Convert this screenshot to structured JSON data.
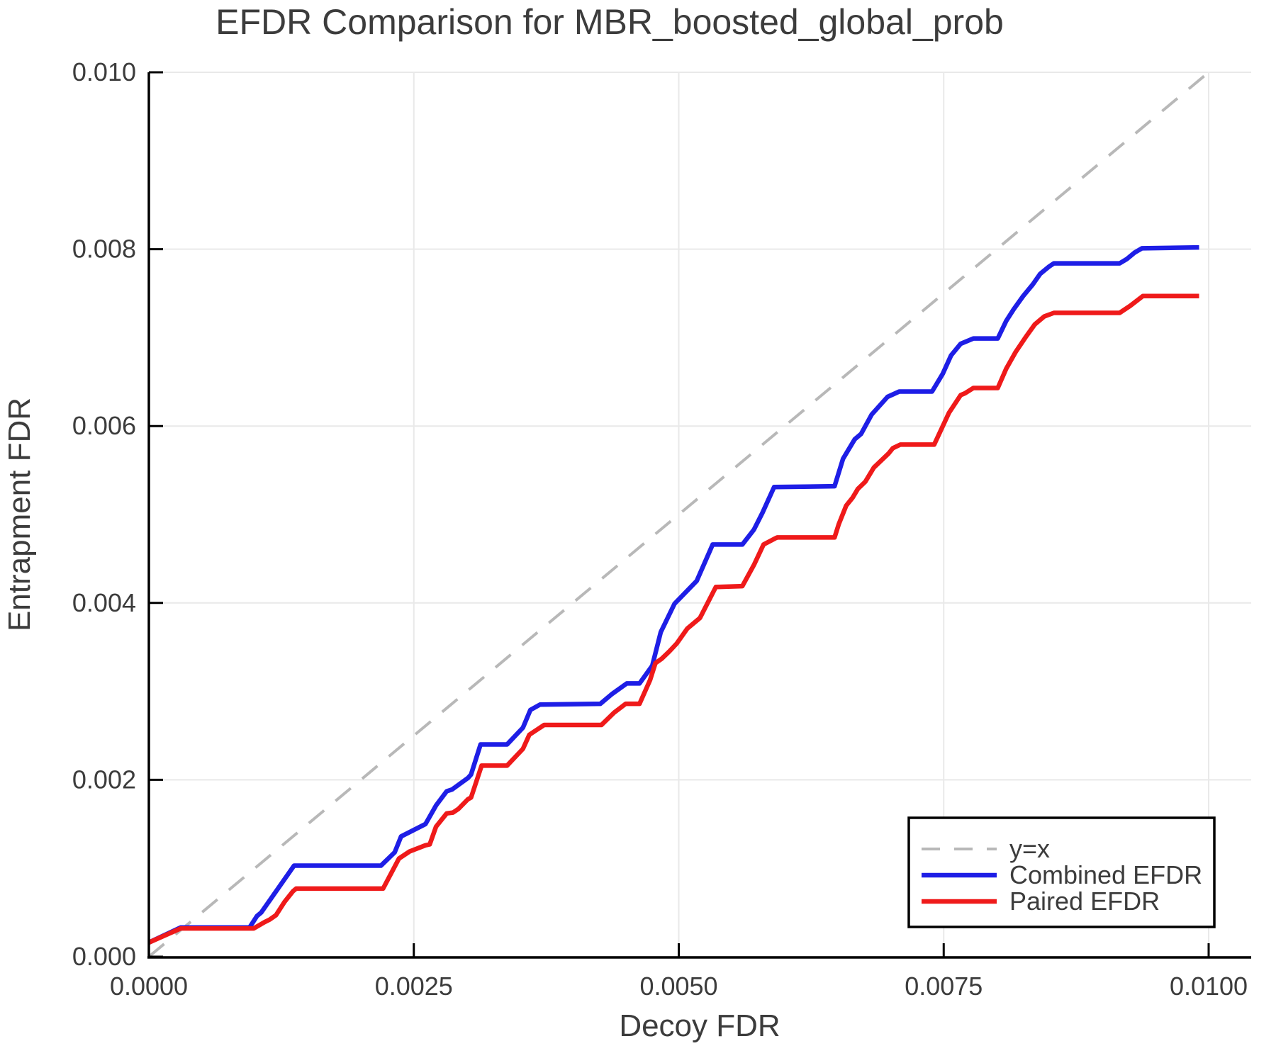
{
  "title": "EFDR Comparison for MBR_boosted_global_prob",
  "colors": {
    "combined": "#1e1ee6",
    "paired": "#ef1a1a",
    "identity": "#b8b8b8",
    "grid": "#e9e9e9",
    "spine": "#000000",
    "text": "#3c3c3c",
    "legend_border": "#000000",
    "legend_fill": "#ffffff"
  },
  "legend": {
    "entries": [
      {
        "label": "y=x",
        "style": "dashed",
        "color": "#b8b8b8"
      },
      {
        "label": "Combined EFDR",
        "style": "solid",
        "color": "#1e1ee6"
      },
      {
        "label": "Paired EFDR",
        "style": "solid",
        "color": "#ef1a1a"
      }
    ],
    "position": "bottom-right"
  },
  "chart_data": {
    "type": "line",
    "title": "EFDR Comparison for MBR_boosted_global_prob",
    "xlabel": "Decoy FDR",
    "ylabel": "Entrapment FDR",
    "xlim": [
      0.0,
      0.0104
    ],
    "ylim": [
      0.0,
      0.01
    ],
    "grid": true,
    "legend_position": "bottom-right",
    "x_ticks": [
      0.0,
      0.0025,
      0.005,
      0.0075,
      0.01
    ],
    "x_tick_labels": [
      "0.0000",
      "0.0025",
      "0.0050",
      "0.0075",
      "0.0100"
    ],
    "y_ticks": [
      0.0,
      0.002,
      0.004,
      0.006,
      0.008,
      0.01
    ],
    "y_tick_labels": [
      "0.000",
      "0.002",
      "0.004",
      "0.006",
      "0.008",
      "0.010"
    ],
    "series": [
      {
        "name": "y=x",
        "style": "dashed",
        "color": "#b8b8b8",
        "width": 4,
        "x": [
          0.0,
          0.01
        ],
        "y": [
          0.0,
          0.01
        ]
      },
      {
        "name": "Combined EFDR",
        "style": "solid",
        "color": "#1e1ee6",
        "width": 6.5,
        "x": [
          0.0,
          0.0003,
          0.00095,
          0.00102,
          0.00106,
          0.00116,
          0.00137,
          0.00219,
          0.00232,
          0.00238,
          0.00261,
          0.00271,
          0.00281,
          0.00286,
          0.00301,
          0.00304,
          0.00313,
          0.00338,
          0.00353,
          0.0036,
          0.00369,
          0.00426,
          0.00437,
          0.00451,
          0.00463,
          0.00475,
          0.00483,
          0.00496,
          0.00517,
          0.00532,
          0.0056,
          0.00571,
          0.00579,
          0.0059,
          0.00647,
          0.00655,
          0.00666,
          0.00672,
          0.00682,
          0.00697,
          0.00708,
          0.00739,
          0.00749,
          0.00757,
          0.00766,
          0.00778,
          0.00801,
          0.00809,
          0.00816,
          0.00825,
          0.00834,
          0.00841,
          0.00849,
          0.00854,
          0.00916,
          0.00923,
          0.0093,
          0.00937,
          0.00991
        ],
        "y": [
          0.00016,
          0.00033,
          0.00033,
          0.00046,
          0.0005,
          0.00067,
          0.00103,
          0.00103,
          0.00118,
          0.00136,
          0.0015,
          0.00171,
          0.00187,
          0.00189,
          0.00202,
          0.00206,
          0.0024,
          0.0024,
          0.00259,
          0.00279,
          0.00285,
          0.00286,
          0.00297,
          0.00309,
          0.00309,
          0.00329,
          0.00367,
          0.00399,
          0.00425,
          0.00466,
          0.00466,
          0.00483,
          0.00502,
          0.00531,
          0.00532,
          0.00563,
          0.00585,
          0.00591,
          0.00613,
          0.00633,
          0.00639,
          0.00639,
          0.00659,
          0.0068,
          0.00693,
          0.00699,
          0.00699,
          0.00719,
          0.00732,
          0.00747,
          0.0076,
          0.00772,
          0.0078,
          0.00784,
          0.00784,
          0.00789,
          0.00796,
          0.00801,
          0.00802
        ]
      },
      {
        "name": "Paired EFDR",
        "style": "solid",
        "color": "#ef1a1a",
        "width": 6.5,
        "x": [
          0.0,
          0.0003,
          0.00099,
          0.00109,
          0.00114,
          0.0012,
          0.00128,
          0.00136,
          0.00139,
          0.00221,
          0.00236,
          0.00246,
          0.00261,
          0.00265,
          0.00271,
          0.00281,
          0.00287,
          0.00292,
          0.00301,
          0.00304,
          0.00314,
          0.00338,
          0.00353,
          0.00359,
          0.00373,
          0.00427,
          0.00439,
          0.0045,
          0.00463,
          0.00473,
          0.00478,
          0.00484,
          0.00491,
          0.00498,
          0.00508,
          0.0052,
          0.00535,
          0.0056,
          0.00571,
          0.0058,
          0.00591,
          0.00593,
          0.00647,
          0.00651,
          0.00658,
          0.00664,
          0.00669,
          0.00676,
          0.00684,
          0.00698,
          0.00702,
          0.00709,
          0.00741,
          0.00755,
          0.00766,
          0.0077,
          0.00778,
          0.00801,
          0.00809,
          0.00818,
          0.00827,
          0.00836,
          0.00841,
          0.00845,
          0.00854,
          0.00916,
          0.00926,
          0.00938,
          0.00991
        ],
        "y": [
          0.00016,
          0.00032,
          0.00032,
          0.00039,
          0.00042,
          0.00047,
          0.00062,
          0.00074,
          0.00077,
          0.00077,
          0.00111,
          0.00119,
          0.00126,
          0.00127,
          0.00147,
          0.00162,
          0.00163,
          0.00167,
          0.00178,
          0.0018,
          0.00216,
          0.00216,
          0.00235,
          0.00251,
          0.00262,
          0.00262,
          0.00276,
          0.00286,
          0.00286,
          0.00313,
          0.00332,
          0.00337,
          0.00345,
          0.00354,
          0.00371,
          0.00383,
          0.00418,
          0.00419,
          0.00443,
          0.00466,
          0.00473,
          0.00474,
          0.00474,
          0.00489,
          0.0051,
          0.00519,
          0.00529,
          0.00537,
          0.00553,
          0.00569,
          0.00575,
          0.00579,
          0.00579,
          0.00615,
          0.00635,
          0.00637,
          0.00643,
          0.00643,
          0.00665,
          0.00684,
          0.007,
          0.00715,
          0.0072,
          0.00724,
          0.00728,
          0.00728,
          0.00736,
          0.00747,
          0.00747
        ]
      }
    ]
  }
}
